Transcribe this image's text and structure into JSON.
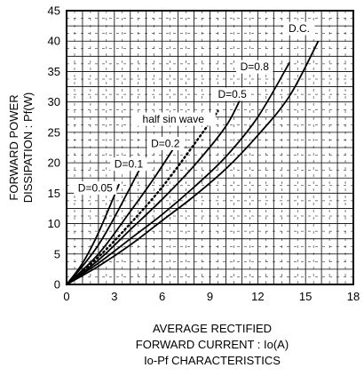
{
  "chart_data": {
    "type": "line",
    "xlabel_lines": [
      "AVERAGE RECTIFIED",
      "FORWARD CURRENT : Io(A)"
    ],
    "ylabel_lines": [
      "FORWARD POWER",
      "DISSIPATION : Pf(W)"
    ],
    "caption": "Io-Pf CHARACTERISTICS",
    "xlim": [
      0,
      18
    ],
    "ylim": [
      0,
      45
    ],
    "x_ticks": [
      "0",
      "3",
      "6",
      "9",
      "12",
      "15",
      "18"
    ],
    "y_ticks": [
      "0",
      "5",
      "10",
      "15",
      "20",
      "25",
      "30",
      "35",
      "40",
      "45"
    ],
    "grid": true,
    "series": [
      {
        "name": "D=0.05",
        "style": "solid",
        "x": [
          0,
          1,
          2,
          3.3
        ],
        "y": [
          0,
          3.5,
          8.5,
          16.5
        ]
      },
      {
        "name": "D=0.1",
        "style": "solid",
        "x": [
          0,
          1,
          2,
          3,
          4.7
        ],
        "y": [
          0,
          3,
          6.5,
          11,
          19.5
        ]
      },
      {
        "name": "D=0.2",
        "style": "solid",
        "x": [
          0,
          2,
          4,
          5.5,
          7
        ],
        "y": [
          0,
          5,
          12,
          17.5,
          23.5
        ]
      },
      {
        "name": "half sin wave",
        "style": "dotted",
        "x": [
          0,
          2,
          4,
          6,
          8,
          9.5
        ],
        "y": [
          0,
          4.5,
          10,
          16,
          23,
          28.5
        ]
      },
      {
        "name": "D=0.5",
        "style": "solid",
        "x": [
          0,
          2,
          4,
          6,
          8,
          10,
          11
        ],
        "y": [
          0,
          4,
          9,
          14,
          19.5,
          26,
          31
        ]
      },
      {
        "name": "D=0.8",
        "style": "solid",
        "x": [
          0,
          2,
          4,
          6,
          8,
          10,
          12,
          14
        ],
        "y": [
          0,
          3.5,
          7.5,
          11.5,
          16,
          21,
          27.5,
          36.5
        ]
      },
      {
        "name": "D.C.",
        "style": "solid",
        "x": [
          0,
          2,
          4,
          6,
          8,
          10,
          12,
          14,
          15.8
        ],
        "y": [
          0,
          3,
          6.5,
          10.5,
          14.5,
          19,
          24.5,
          31,
          40
        ]
      }
    ]
  }
}
